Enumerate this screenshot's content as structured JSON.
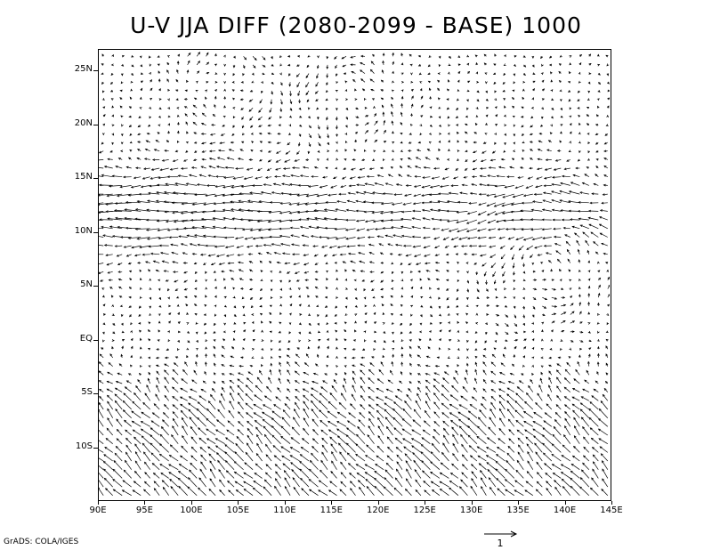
{
  "title": "U-V JJA DIFF (2080-2099 - BASE) 1000",
  "map": {
    "lon_range": [
      90,
      145
    ],
    "lat_range": [
      -15,
      27
    ],
    "lat_labels": [
      "25N",
      "20N",
      "15N",
      "10N",
      "5N",
      "EQ",
      "5S",
      "10S"
    ],
    "lat_values": [
      25,
      20,
      15,
      10,
      5,
      0,
      -5,
      -10
    ],
    "lon_labels": [
      "90E",
      "95E",
      "100E",
      "105E",
      "110E",
      "115E",
      "120E",
      "125E",
      "130E",
      "135E",
      "140E",
      "145E"
    ],
    "lon_values": [
      90,
      95,
      100,
      105,
      110,
      115,
      120,
      125,
      130,
      135,
      140,
      145
    ],
    "field": "wind vector difference (u, v) at 1000 hPa",
    "coastline_color": "#c8c8c8",
    "vector_color": "#000000"
  },
  "footer": {
    "credit": "GrADS: COLA/IGES",
    "reference_vector_label": "1"
  }
}
